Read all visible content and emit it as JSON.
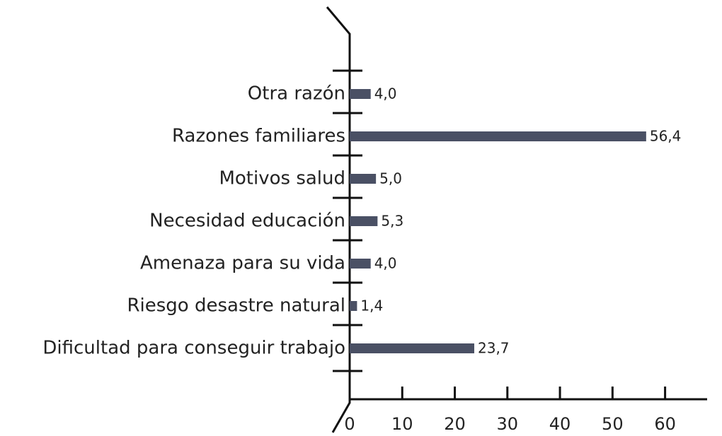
{
  "chart_data": {
    "type": "bar",
    "orientation": "horizontal",
    "categories": [
      "Otra razón",
      "Razones familiares",
      "Motivos salud",
      "Necesidad educación",
      "Amenaza para su vida",
      "Riesgo desastre natural",
      "Dificultad para conseguir trabajo"
    ],
    "values": [
      4.0,
      56.4,
      5.0,
      5.3,
      4.0,
      1.4,
      23.7
    ],
    "value_labels": [
      "4,0",
      "56,4",
      "5,0",
      "5,3",
      "4,0",
      "1,4",
      "23,7"
    ],
    "color": "#4a5064",
    "xlim": [
      0,
      68
    ],
    "xticks": [
      0,
      10,
      20,
      30,
      40,
      50,
      60
    ]
  }
}
